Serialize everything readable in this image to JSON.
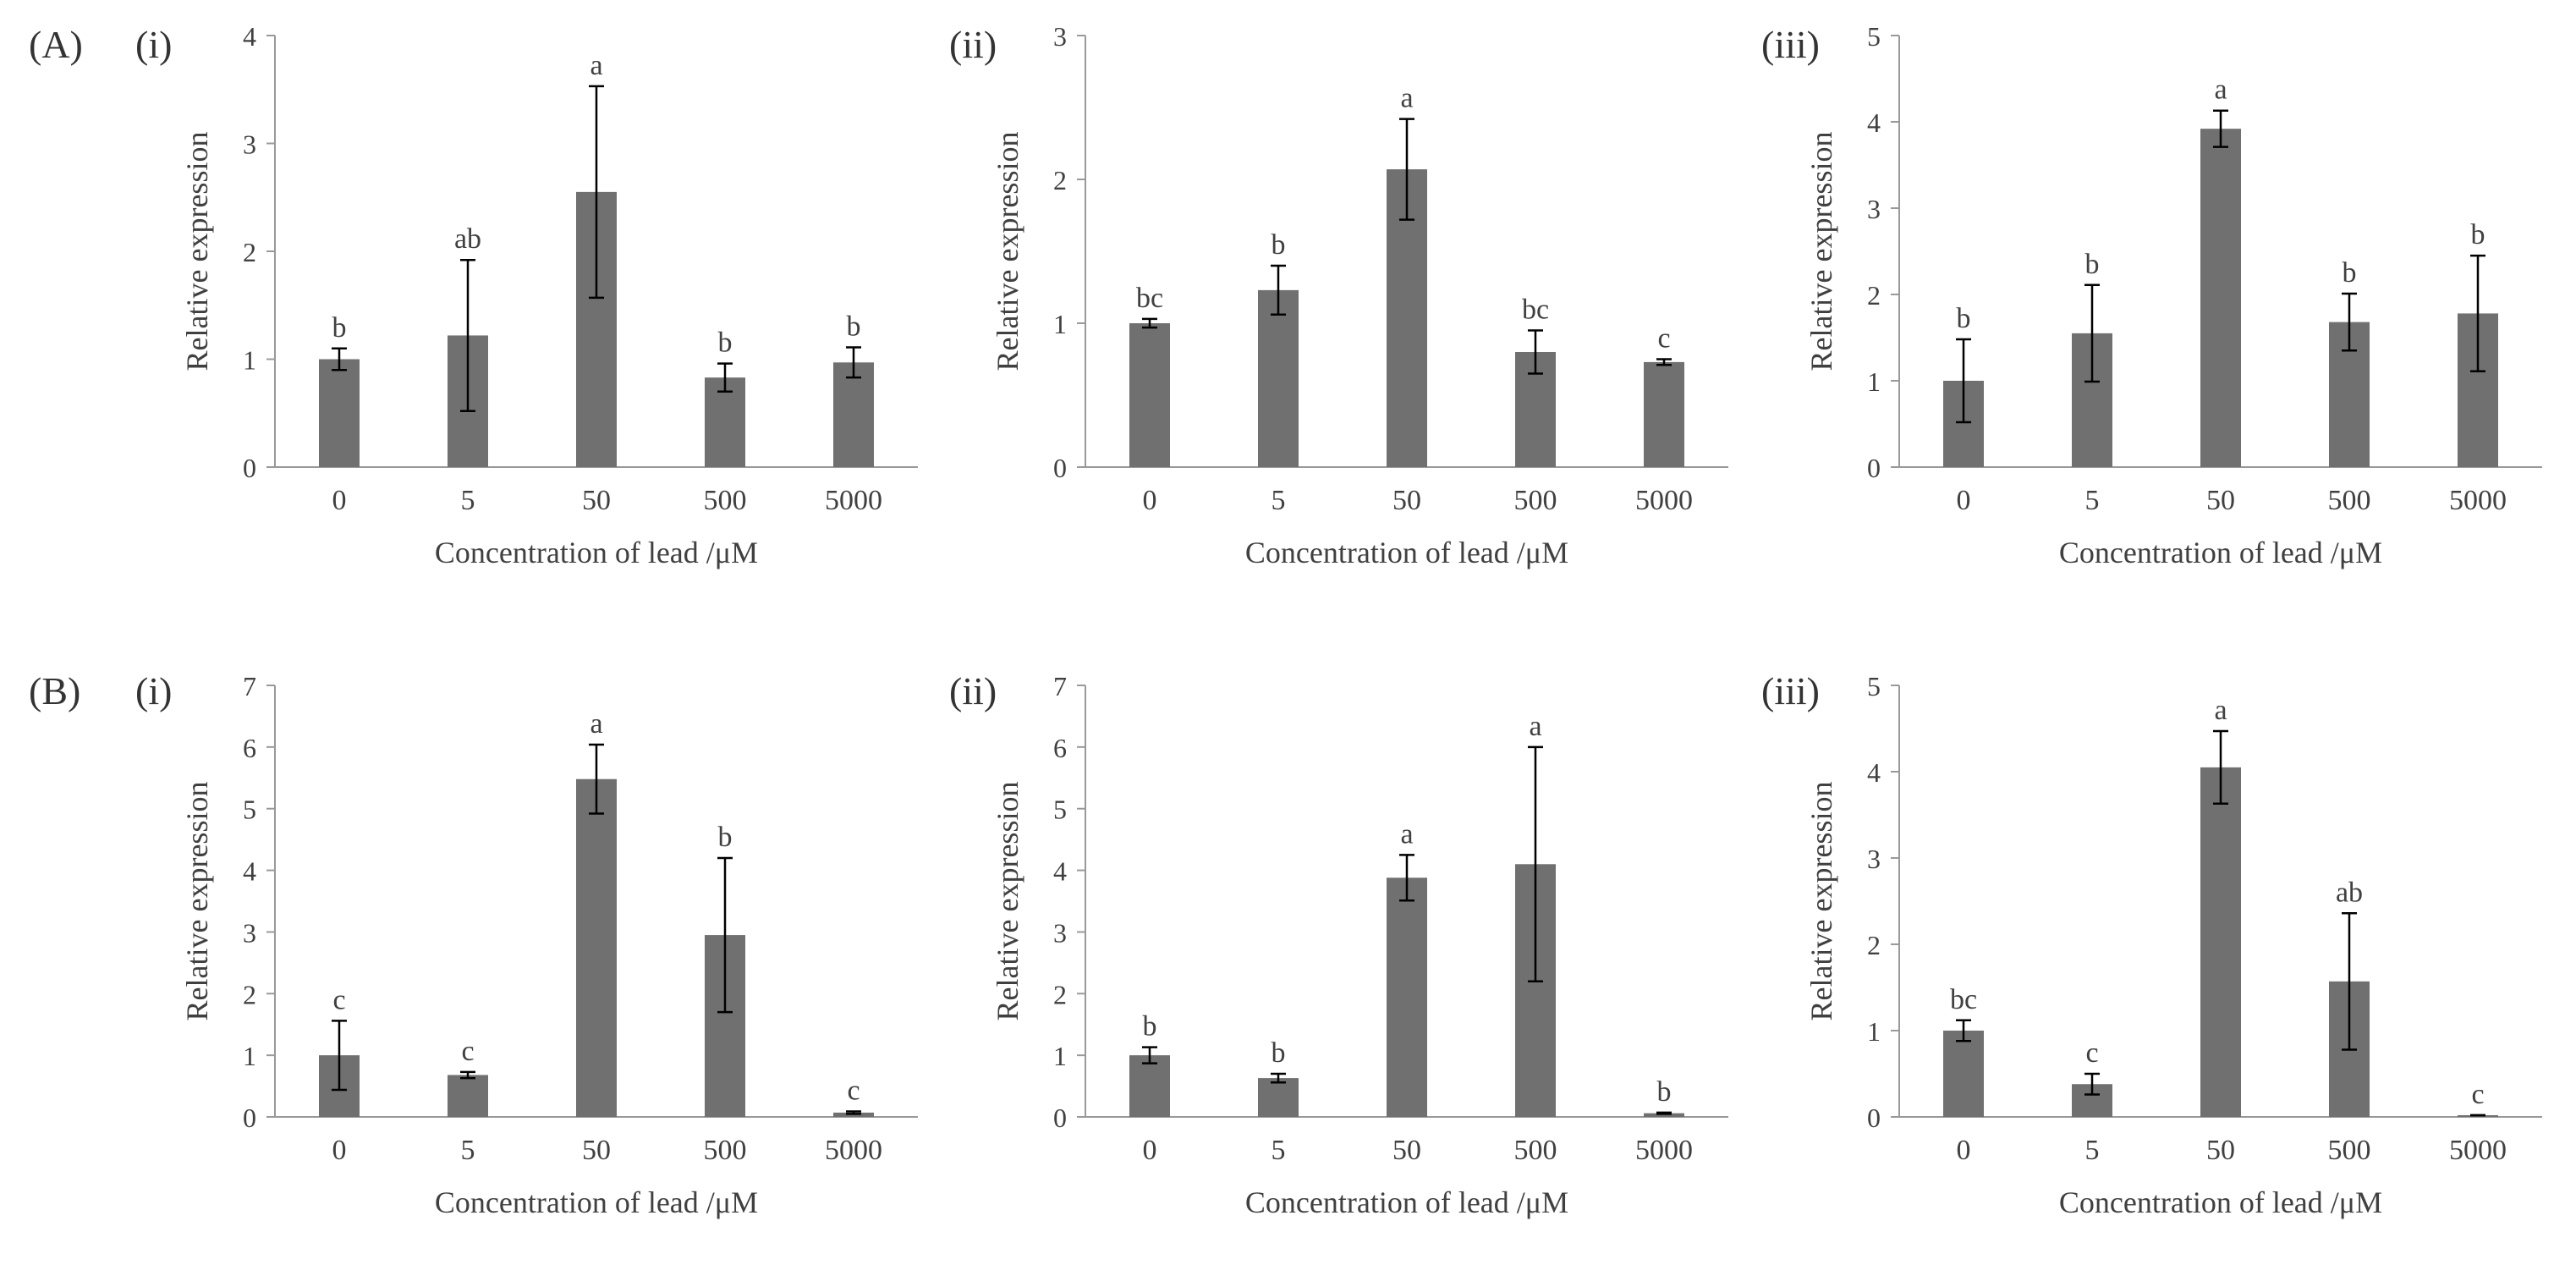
{
  "figure": {
    "row_labels": [
      "(A)",
      "(B)"
    ],
    "bar_color": "#707070",
    "axis_color": "#999999",
    "text_color": "#404040"
  },
  "chart_data": [
    {
      "id": "A-i",
      "row": "(A)",
      "panel": "(i)",
      "type": "bar",
      "categories": [
        "0",
        "5",
        "50",
        "500",
        "5000"
      ],
      "values": [
        1.0,
        1.22,
        2.55,
        0.83,
        0.97
      ],
      "errors": [
        0.1,
        0.7,
        0.98,
        0.13,
        0.14
      ],
      "letters": [
        "b",
        "ab",
        "a",
        "b",
        "b"
      ],
      "xlabel": "Concentration of lead /μM",
      "ylabel": "Relative expression",
      "ylim": [
        0,
        4
      ],
      "yticks": [
        0,
        1,
        2,
        3,
        4
      ]
    },
    {
      "id": "A-ii",
      "row": "(A)",
      "panel": "(ii)",
      "type": "bar",
      "categories": [
        "0",
        "5",
        "50",
        "500",
        "5000"
      ],
      "values": [
        1.0,
        1.23,
        2.07,
        0.8,
        0.73
      ],
      "errors": [
        0.03,
        0.17,
        0.35,
        0.15,
        0.02
      ],
      "letters": [
        "bc",
        "b",
        "a",
        "bc",
        "c"
      ],
      "xlabel": "Concentration of lead /μM",
      "ylabel": "Relative expression",
      "ylim": [
        0,
        3
      ],
      "yticks": [
        0,
        1,
        2,
        3
      ]
    },
    {
      "id": "A-iii",
      "row": "(A)",
      "panel": "(iii)",
      "type": "bar",
      "categories": [
        "0",
        "5",
        "50",
        "500",
        "5000"
      ],
      "values": [
        1.0,
        1.55,
        3.92,
        1.68,
        1.78
      ],
      "errors": [
        0.48,
        0.56,
        0.21,
        0.33,
        0.67
      ],
      "letters": [
        "b",
        "b",
        "a",
        "b",
        "b"
      ],
      "xlabel": "Concentration of lead /μM",
      "ylabel": "Relative expression",
      "ylim": [
        0,
        5
      ],
      "yticks": [
        0,
        1,
        2,
        3,
        4,
        5
      ]
    },
    {
      "id": "B-i",
      "row": "(B)",
      "panel": "(i)",
      "type": "bar",
      "categories": [
        "0",
        "5",
        "50",
        "500",
        "5000"
      ],
      "values": [
        1.0,
        0.68,
        5.48,
        2.95,
        0.07
      ],
      "errors": [
        0.56,
        0.05,
        0.56,
        1.25,
        0.02
      ],
      "letters": [
        "c",
        "c",
        "a",
        "b",
        "c"
      ],
      "xlabel": "Concentration of lead /μM",
      "ylabel": "Relative expression",
      "ylim": [
        0,
        7
      ],
      "yticks": [
        0,
        1,
        2,
        3,
        4,
        5,
        6,
        7
      ]
    },
    {
      "id": "B-ii",
      "row": "(B)",
      "panel": "(ii)",
      "type": "bar",
      "categories": [
        "0",
        "5",
        "50",
        "500",
        "5000"
      ],
      "values": [
        1.0,
        0.63,
        3.88,
        4.1,
        0.06
      ],
      "errors": [
        0.13,
        0.07,
        0.37,
        1.9,
        0.01
      ],
      "letters": [
        "b",
        "b",
        "a",
        "a",
        "b"
      ],
      "xlabel": "Concentration of lead  /μM",
      "ylabel": "Relative expression",
      "ylim": [
        0,
        7
      ],
      "yticks": [
        0,
        1,
        2,
        3,
        4,
        5,
        6,
        7
      ]
    },
    {
      "id": "B-iii",
      "row": "(B)",
      "panel": "(iii)",
      "type": "bar",
      "categories": [
        "0",
        "5",
        "50",
        "500",
        "5000"
      ],
      "values": [
        1.0,
        0.38,
        4.05,
        1.57,
        0.02
      ],
      "errors": [
        0.12,
        0.12,
        0.42,
        0.79,
        0.0
      ],
      "letters": [
        "bc",
        "c",
        "a",
        "ab",
        "c"
      ],
      "xlabel": "Concentration of lead  /μM",
      "ylabel": "Relative expression",
      "ylim": [
        0,
        5
      ],
      "yticks": [
        0,
        1,
        2,
        3,
        4,
        5
      ]
    }
  ]
}
